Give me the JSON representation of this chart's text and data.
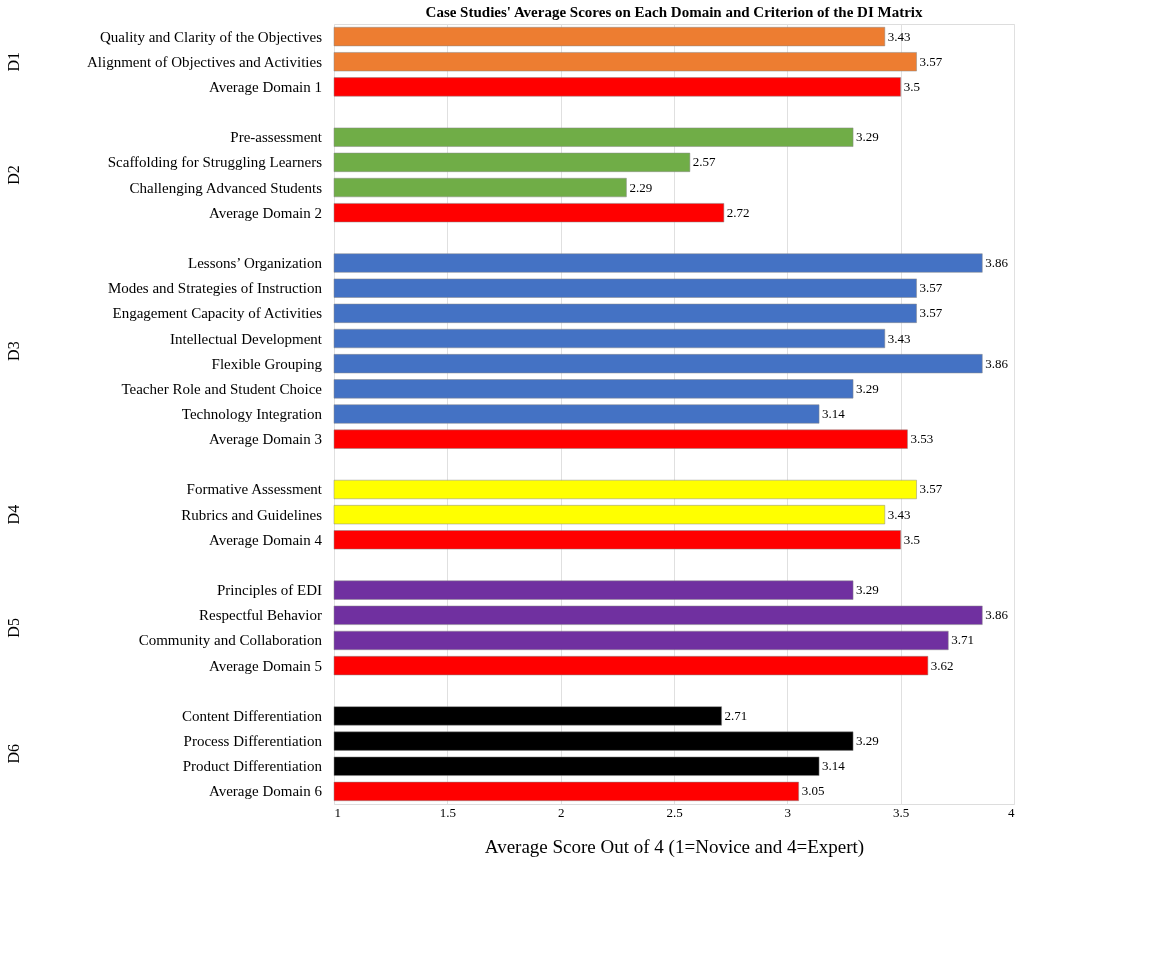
{
  "chart_data": {
    "type": "bar",
    "orientation": "horizontal",
    "title": "Case Studies' Average Scores on Each Domain and Criterion of the DI Matrix",
    "xlabel": "Average Score Out of 4 (1=Novice and 4=Expert)",
    "categories": [
      "Quality and Clarity of the Objectives",
      "Alignment of Objectives and Activities",
      "Average Domain 1",
      null,
      "Pre-assessment",
      "Scaffolding for Struggling Learners",
      "Challenging Advanced Students",
      "Average Domain 2",
      null,
      "Lessons’ Organization",
      "Modes and Strategies of Instruction",
      "Engagement Capacity of Activities",
      "Intellectual Development",
      "Flexible Grouping",
      "Teacher Role and Student Choice",
      "Technology Integration",
      "Average Domain 3",
      null,
      "Formative Assessment",
      "Rubrics and Guidelines",
      "Average Domain 4",
      null,
      "Principles of EDI",
      "Respectful Behavior",
      "Community and Collaboration",
      "Average Domain 5",
      null,
      "Content Differentiation",
      "Process Differentiation",
      "Product Differentiation",
      "Average Domain 6"
    ],
    "values": [
      3.43,
      3.57,
      3.5,
      null,
      3.29,
      2.57,
      2.29,
      2.72,
      null,
      3.86,
      3.57,
      3.57,
      3.43,
      3.86,
      3.29,
      3.14,
      3.53,
      null,
      3.57,
      3.43,
      3.5,
      null,
      3.29,
      3.86,
      3.71,
      3.62,
      null,
      2.71,
      3.29,
      3.14,
      3.05
    ],
    "colors": [
      "#ed7d31",
      "#ed7d31",
      "#ff0000",
      null,
      "#70ad47",
      "#70ad47",
      "#70ad47",
      "#ff0000",
      null,
      "#4472c4",
      "#4472c4",
      "#4472c4",
      "#4472c4",
      "#4472c4",
      "#4472c4",
      "#4472c4",
      "#ff0000",
      null,
      "#ffff00",
      "#ffff00",
      "#ff0000",
      null,
      "#7030a0",
      "#7030a0",
      "#7030a0",
      "#ff0000",
      null,
      "#000000",
      "#000000",
      "#000000",
      "#ff0000"
    ],
    "annotations": [
      "D1",
      "D2",
      "D3",
      "D4",
      "D5",
      "D6"
    ],
    "xlim": [
      1,
      4
    ],
    "xticks": [
      1,
      1.5,
      2,
      2.5,
      3,
      3.5,
      4
    ],
    "grid": "x",
    "data_labels": true
  }
}
